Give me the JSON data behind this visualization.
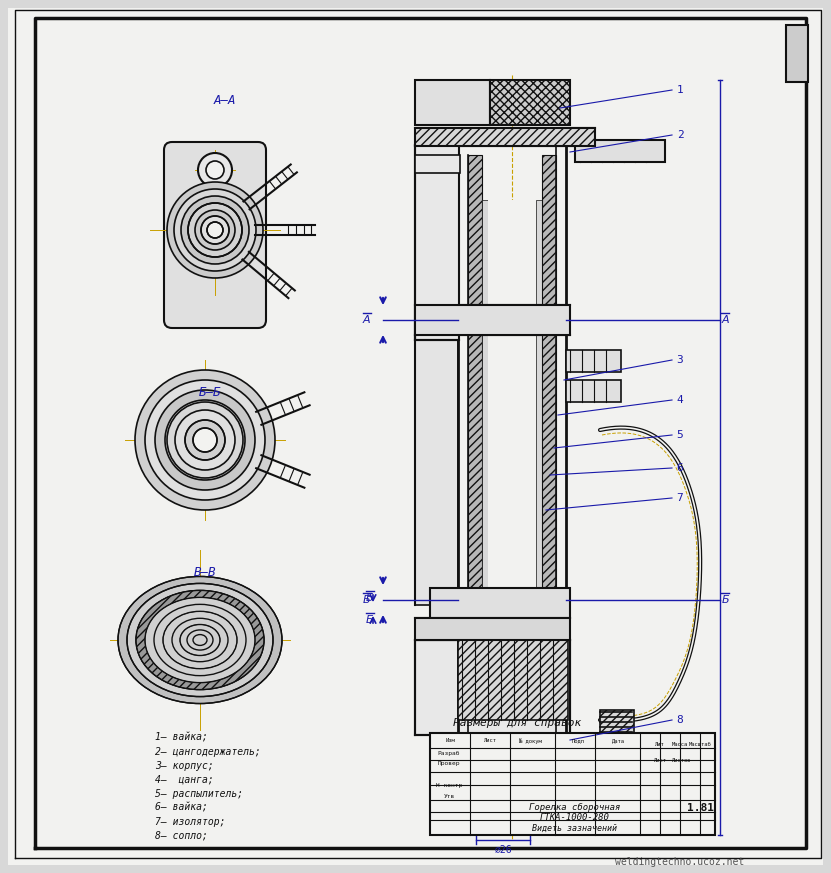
{
  "bg_color": "#d8d8d8",
  "paper_color": "#f2f2f0",
  "blue_color": "#1a1aaa",
  "line_color": "#111111",
  "gold_color": "#c8a000",
  "title_text": "Горелка сборочная\nГТКА-1000-280\nВидеть зазначений",
  "doc_number": "1.81",
  "legend_items": [
    "1– вайка;",
    "2– цангодержатель;",
    "3– корпус;",
    "4–  цанга;",
    "5– распылитель;",
    "6– вайка;",
    "7– изолятор;",
    "8– сопло;"
  ],
  "section_labels": [
    "А–А",
    "Б–Б",
    "В–В"
  ],
  "dim_label": "Размеры для справок",
  "watermark": "weldingtechno.ucoz.net"
}
